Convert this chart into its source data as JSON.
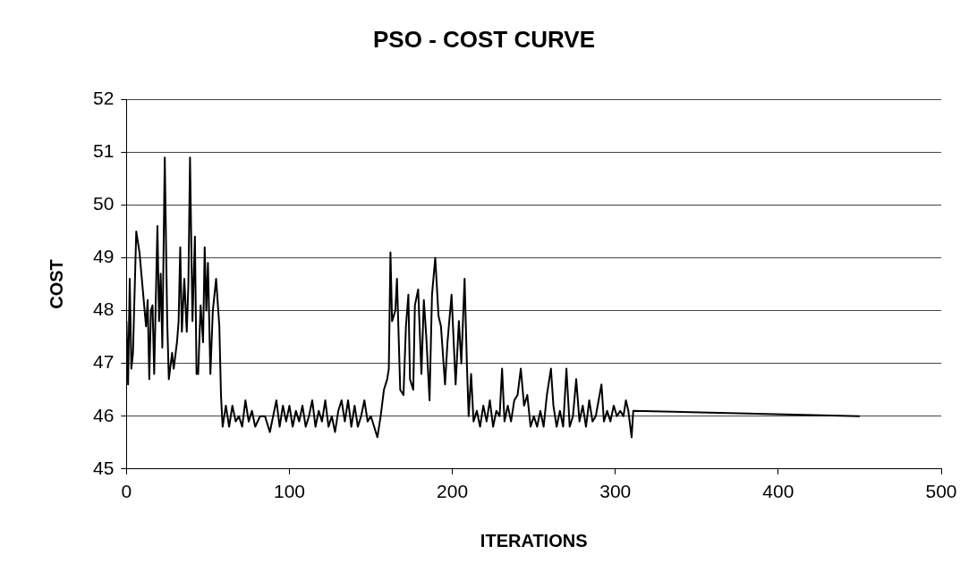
{
  "chart_data": {
    "type": "line",
    "title": "PSO - COST CURVE",
    "xlabel": "ITERATIONS",
    "ylabel": "COST",
    "xlim": [
      0,
      500
    ],
    "xticks": [
      0,
      100,
      200,
      300,
      400,
      500
    ],
    "ylim": [
      45,
      52
    ],
    "yticks": [
      45,
      46,
      47,
      48,
      49,
      50,
      51,
      52
    ],
    "grid": "y",
    "legend": false,
    "marker": "none",
    "line_style": "solid",
    "series": [
      {
        "color": "#000000",
        "x": [
          0,
          1,
          2,
          3,
          4,
          6,
          8,
          10,
          12,
          13,
          14,
          15,
          16,
          17,
          19,
          20,
          21,
          22,
          23.5,
          25,
          26,
          28,
          29,
          31,
          32,
          33,
          34,
          35.5,
          37,
          38,
          39,
          40.5,
          42,
          43,
          44,
          45.5,
          47,
          48,
          49,
          50,
          51.5,
          53,
          55,
          57,
          58,
          59,
          61,
          63,
          65,
          67,
          69,
          71,
          73,
          75,
          77,
          79,
          82,
          85,
          88,
          90,
          92,
          94,
          96,
          98,
          100,
          102,
          104,
          106,
          108,
          110,
          112,
          114,
          116,
          118,
          120,
          122,
          124,
          126,
          128,
          130,
          132,
          134,
          136,
          138,
          140,
          142,
          144,
          146,
          148,
          150,
          152,
          154,
          156,
          158,
          160,
          161,
          162,
          163,
          165,
          166,
          168,
          170,
          171.5,
          173,
          174,
          176,
          177,
          179,
          181,
          182.5,
          184,
          186,
          187.5,
          189.5,
          191.5,
          193,
          195.5,
          197,
          199.5,
          202,
          204,
          205.5,
          207.5,
          209,
          210,
          211.5,
          213,
          215,
          217,
          219,
          221,
          223,
          225,
          227,
          229,
          230.5,
          232,
          234,
          236,
          238,
          240,
          242,
          244,
          246,
          248,
          250,
          252,
          254,
          256,
          258,
          260.5,
          262,
          264,
          266,
          268,
          270,
          272,
          274,
          276,
          278,
          280,
          282,
          284,
          286,
          288,
          291.5,
          293,
          295,
          297,
          299,
          301,
          303,
          305,
          306.5,
          308,
          310,
          311,
          450
        ],
        "values": [
          47.8,
          46.6,
          48.6,
          46.9,
          47.2,
          49.5,
          49.1,
          48.4,
          47.7,
          48.2,
          46.7,
          48.0,
          48.1,
          46.8,
          49.6,
          47.8,
          48.7,
          47.3,
          50.9,
          47.8,
          46.7,
          47.2,
          46.9,
          47.4,
          47.8,
          49.2,
          47.6,
          48.6,
          47.6,
          48.5,
          50.9,
          47.8,
          49.4,
          46.8,
          46.8,
          48.1,
          47.4,
          49.2,
          48.0,
          48.9,
          46.8,
          48.0,
          48.6,
          47.7,
          46.4,
          45.8,
          46.2,
          45.8,
          46.2,
          45.9,
          46.0,
          45.8,
          46.3,
          45.9,
          46.1,
          45.8,
          46.0,
          46.0,
          45.7,
          46.0,
          46.3,
          45.8,
          46.2,
          45.9,
          46.2,
          45.8,
          46.1,
          45.9,
          46.2,
          45.8,
          46.0,
          46.3,
          45.8,
          46.1,
          45.9,
          46.3,
          45.8,
          46.0,
          45.7,
          46.1,
          46.3,
          45.9,
          46.3,
          45.8,
          46.2,
          45.8,
          46.0,
          46.3,
          45.9,
          46.0,
          45.8,
          45.6,
          46.0,
          46.5,
          46.7,
          46.9,
          49.1,
          47.8,
          48.0,
          48.6,
          46.5,
          46.4,
          47.7,
          48.3,
          46.7,
          46.5,
          48.1,
          48.4,
          46.8,
          48.2,
          47.5,
          46.3,
          48.3,
          49.0,
          47.9,
          47.7,
          46.6,
          47.4,
          48.3,
          46.6,
          47.8,
          47.0,
          48.6,
          46.9,
          46.0,
          46.8,
          45.9,
          46.1,
          45.8,
          46.2,
          45.9,
          46.3,
          45.8,
          46.1,
          46.0,
          46.9,
          45.9,
          46.2,
          45.9,
          46.3,
          46.4,
          46.9,
          46.2,
          46.4,
          45.8,
          46.0,
          45.8,
          46.1,
          45.8,
          46.4,
          46.9,
          46.2,
          45.8,
          46.1,
          45.8,
          46.9,
          45.8,
          46.0,
          46.7,
          45.9,
          46.2,
          45.8,
          46.3,
          45.9,
          46.0,
          46.6,
          45.9,
          46.1,
          45.9,
          46.2,
          46.0,
          46.1,
          46.0,
          46.3,
          46.1,
          45.6,
          46.1,
          46.0
        ]
      }
    ]
  }
}
